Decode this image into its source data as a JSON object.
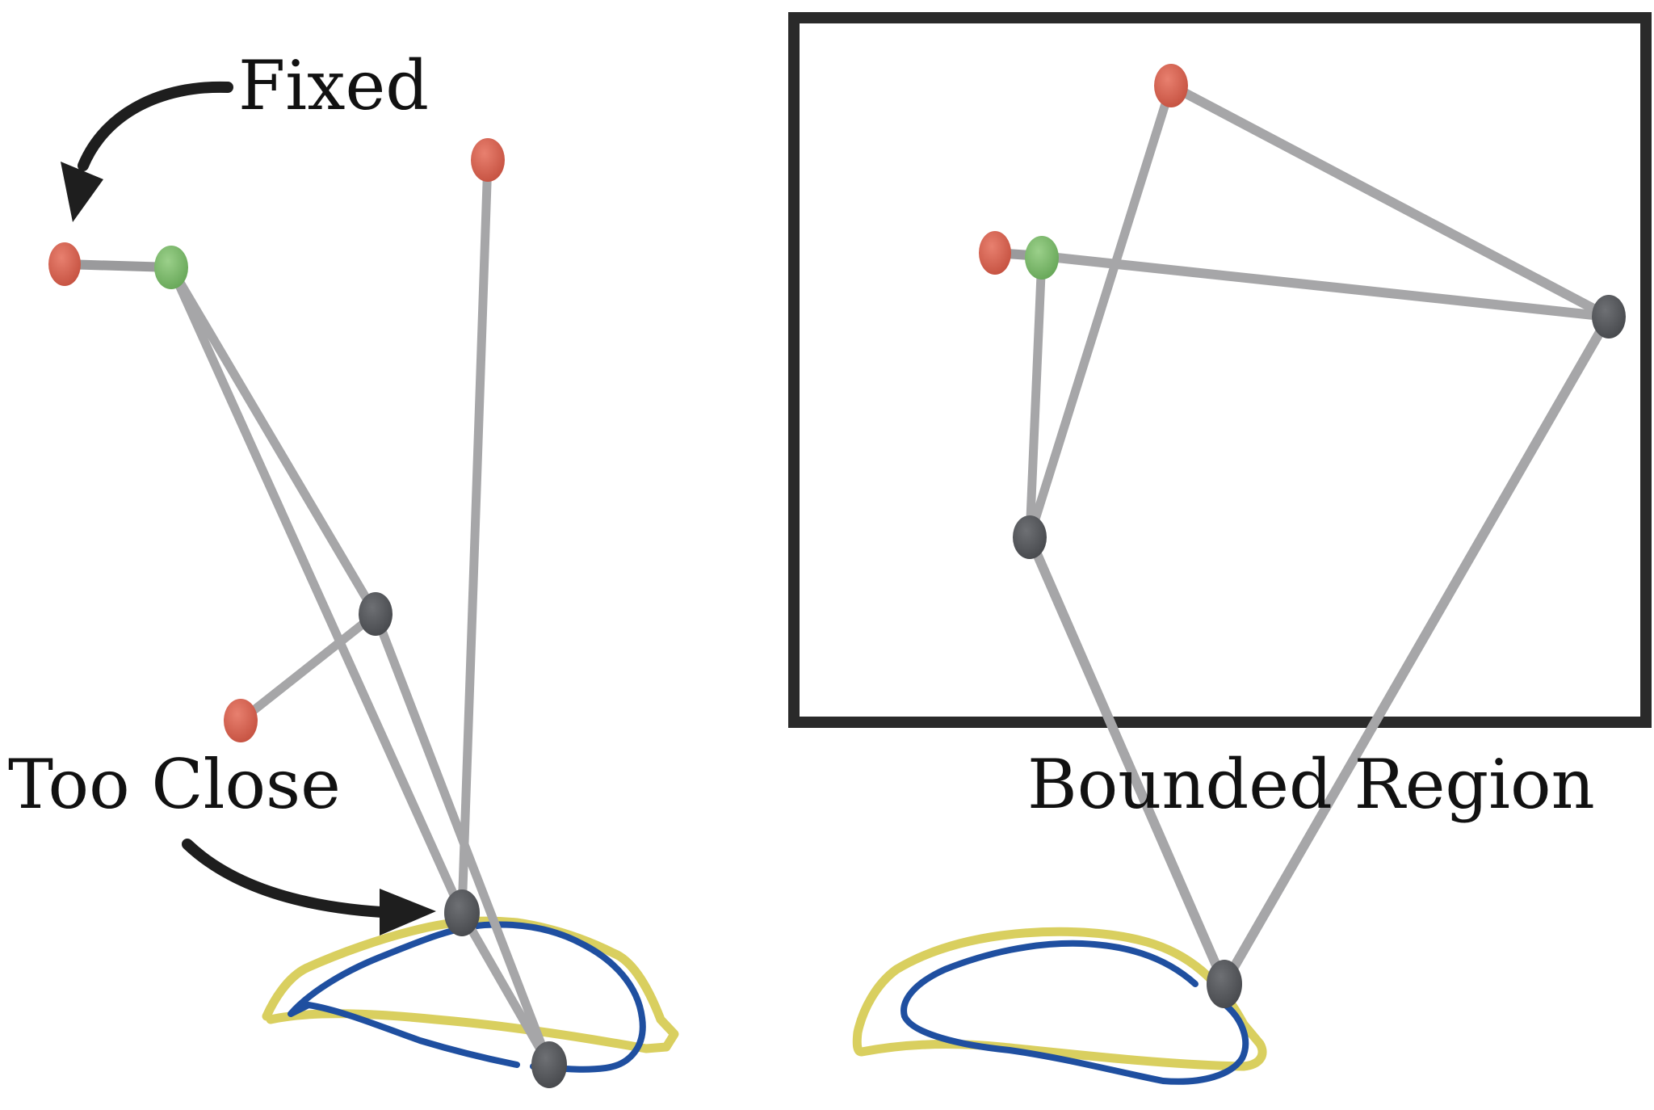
{
  "labels": {
    "fixed": "Fixed",
    "too_close": "Too Close",
    "bounded_region": "Bounded Region"
  },
  "colors": {
    "fixed_joint": "#d0604e",
    "input_joint": "#7ab86a",
    "free_joint": "#5a5c60",
    "link": "#a9a9ab",
    "target_curve": "#d9cf5f",
    "traced_curve": "#1f4fa0",
    "bound_box": "#2a2a2a",
    "arrow": "#1e1e1e"
  }
}
